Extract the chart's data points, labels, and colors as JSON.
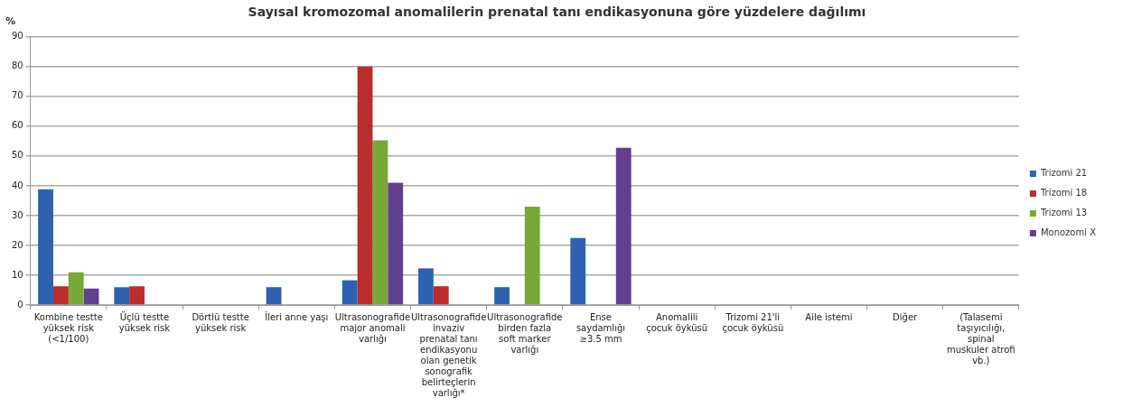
{
  "chart_data": {
    "type": "bar",
    "title": "Sayısal kromozomal anomalilerin prenatal tanı endikasyonuna göre yüzdelere dağılımı",
    "ylabel": "%",
    "categories": [
      "Kombine testte yüksek risk (<1/100)",
      "Üçlü testte yüksek risk",
      "Dörtlü testte yüksek risk",
      "İleri anne yaşı",
      "Ultrasonografide major anomali varlığı",
      "Ultrasonografide invaziv prenatal tanı endikasyonu olan genetik sonografik belirteçlerin varlığı*",
      "Ultrasonografide birden fazla soft marker varlığı",
      "Ense saydamlığı ≥3.5 mm",
      "Anomalili çocuk öyküsü",
      "Trizomi 21'li çocuk öyküsü",
      "Aile istemi",
      "Diğer",
      "(Talasemi taşıyıcılığı, spinal muskuler atrofi vb.)"
    ],
    "series": [
      {
        "name": "Trizomi 21",
        "color": "#2e62b0",
        "values": [
          38.8,
          6,
          0,
          6,
          8.3,
          12.3,
          6,
          22.5,
          0,
          0,
          0,
          0,
          0
        ]
      },
      {
        "name": "Trizomi 18",
        "color": "#bb2c2c",
        "values": [
          6.3,
          6.3,
          0,
          0,
          80,
          6.3,
          0,
          0,
          0,
          0,
          0,
          0,
          0
        ]
      },
      {
        "name": "Trizomi 13",
        "color": "#78a838",
        "values": [
          11,
          0,
          0,
          0,
          55.3,
          0,
          33,
          0,
          0,
          0,
          0,
          0,
          0
        ]
      },
      {
        "name": "Monozomi X",
        "color": "#62408f",
        "values": [
          5.5,
          0,
          0,
          0,
          41,
          0,
          0,
          52.8,
          0,
          0,
          0,
          0,
          0
        ]
      }
    ],
    "ylim": [
      0,
      90
    ],
    "yticks": [
      0,
      10,
      20,
      30,
      40,
      50,
      60,
      70,
      80,
      90
    ],
    "grid": "y",
    "legend": "right"
  }
}
